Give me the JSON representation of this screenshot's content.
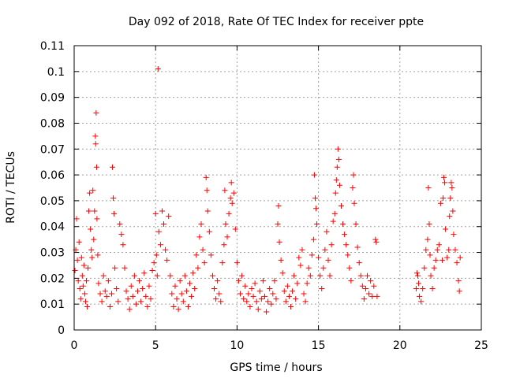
{
  "chart_data": {
    "type": "scatter",
    "title": "Day 092 of 2018, Rate Of TEC Index for receiver ppte",
    "xlabel": "GPS time / hours",
    "ylabel": "ROTI / TECUs",
    "xlim": [
      0,
      25
    ],
    "ylim": [
      0,
      0.11
    ],
    "x_ticks": [
      "0",
      "5",
      "10",
      "15",
      "20",
      "25"
    ],
    "y_ticks": [
      "0",
      "0.01",
      "0.02",
      "0.03",
      "0.04",
      "0.05",
      "0.06",
      "0.07",
      "0.08",
      "0.09",
      "0.1",
      "0.11"
    ],
    "grid": true,
    "marker": "plus",
    "color": "#ff0000",
    "series": [
      {
        "points": [
          [
            0.05,
            0.023
          ],
          [
            0.1,
            0.031
          ],
          [
            0.15,
            0.043
          ],
          [
            0.2,
            0.027
          ],
          [
            0.25,
            0.019
          ],
          [
            0.3,
            0.034
          ],
          [
            0.35,
            0.016
          ],
          [
            0.4,
            0.012
          ],
          [
            0.45,
            0.028
          ],
          [
            0.5,
            0.021
          ],
          [
            0.55,
            0.017
          ],
          [
            0.6,
            0.025
          ],
          [
            0.65,
            0.014
          ],
          [
            0.7,
            0.011
          ],
          [
            0.75,
            0.019
          ],
          [
            0.8,
            0.009
          ],
          [
            0.85,
            0.024
          ],
          [
            0.9,
            0.046
          ],
          [
            0.95,
            0.053
          ],
          [
            1.0,
            0.039
          ],
          [
            1.05,
            0.031
          ],
          [
            1.1,
            0.028
          ],
          [
            1.15,
            0.054
          ],
          [
            1.2,
            0.035
          ],
          [
            1.25,
            0.046
          ],
          [
            1.3,
            0.075
          ],
          [
            1.32,
            0.072
          ],
          [
            1.35,
            0.084
          ],
          [
            1.38,
            0.063
          ],
          [
            1.4,
            0.043
          ],
          [
            1.45,
            0.029
          ],
          [
            1.5,
            0.018
          ],
          [
            1.6,
            0.014
          ],
          [
            1.7,
            0.011
          ],
          [
            1.8,
            0.021
          ],
          [
            1.9,
            0.015
          ],
          [
            2.0,
            0.013
          ],
          [
            2.1,
            0.019
          ],
          [
            2.2,
            0.009
          ],
          [
            2.3,
            0.014
          ],
          [
            2.35,
            0.063
          ],
          [
            2.4,
            0.051
          ],
          [
            2.45,
            0.045
          ],
          [
            2.5,
            0.024
          ],
          [
            2.6,
            0.016
          ],
          [
            2.7,
            0.011
          ],
          [
            2.8,
            0.041
          ],
          [
            2.9,
            0.037
          ],
          [
            3.0,
            0.033
          ],
          [
            3.1,
            0.024
          ],
          [
            3.2,
            0.015
          ],
          [
            3.3,
            0.012
          ],
          [
            3.4,
            0.008
          ],
          [
            3.5,
            0.017
          ],
          [
            3.6,
            0.013
          ],
          [
            3.7,
            0.021
          ],
          [
            3.8,
            0.01
          ],
          [
            3.9,
            0.015
          ],
          [
            4.0,
            0.019
          ],
          [
            4.1,
            0.011
          ],
          [
            4.2,
            0.016
          ],
          [
            4.3,
            0.022
          ],
          [
            4.4,
            0.013
          ],
          [
            4.5,
            0.009
          ],
          [
            4.6,
            0.017
          ],
          [
            4.7,
            0.012
          ],
          [
            4.8,
            0.023
          ],
          [
            4.9,
            0.026
          ],
          [
            5.0,
            0.045
          ],
          [
            5.05,
            0.029
          ],
          [
            5.1,
            0.021
          ],
          [
            5.15,
            0.101
          ],
          [
            5.2,
            0.038
          ],
          [
            5.3,
            0.033
          ],
          [
            5.4,
            0.046
          ],
          [
            5.5,
            0.041
          ],
          [
            5.6,
            0.031
          ],
          [
            5.7,
            0.027
          ],
          [
            5.8,
            0.044
          ],
          [
            5.9,
            0.021
          ],
          [
            6.0,
            0.014
          ],
          [
            6.1,
            0.009
          ],
          [
            6.2,
            0.017
          ],
          [
            6.3,
            0.012
          ],
          [
            6.4,
            0.008
          ],
          [
            6.5,
            0.019
          ],
          [
            6.6,
            0.014
          ],
          [
            6.7,
            0.011
          ],
          [
            6.8,
            0.021
          ],
          [
            6.9,
            0.015
          ],
          [
            7.0,
            0.009
          ],
          [
            7.1,
            0.018
          ],
          [
            7.2,
            0.013
          ],
          [
            7.3,
            0.022
          ],
          [
            7.4,
            0.016
          ],
          [
            7.5,
            0.029
          ],
          [
            7.6,
            0.024
          ],
          [
            7.7,
            0.036
          ],
          [
            7.8,
            0.041
          ],
          [
            7.9,
            0.031
          ],
          [
            8.0,
            0.026
          ],
          [
            8.1,
            0.059
          ],
          [
            8.15,
            0.054
          ],
          [
            8.2,
            0.046
          ],
          [
            8.3,
            0.038
          ],
          [
            8.4,
            0.029
          ],
          [
            8.5,
            0.021
          ],
          [
            8.6,
            0.016
          ],
          [
            8.7,
            0.012
          ],
          [
            8.8,
            0.019
          ],
          [
            8.9,
            0.014
          ],
          [
            9.0,
            0.011
          ],
          [
            9.1,
            0.026
          ],
          [
            9.2,
            0.033
          ],
          [
            9.25,
            0.054
          ],
          [
            9.3,
            0.041
          ],
          [
            9.4,
            0.036
          ],
          [
            9.5,
            0.045
          ],
          [
            9.6,
            0.051
          ],
          [
            9.65,
            0.057
          ],
          [
            9.7,
            0.049
          ],
          [
            9.8,
            0.053
          ],
          [
            9.9,
            0.039
          ],
          [
            10.0,
            0.026
          ],
          [
            10.1,
            0.019
          ],
          [
            10.2,
            0.014
          ],
          [
            10.3,
            0.021
          ],
          [
            10.4,
            0.012
          ],
          [
            10.5,
            0.017
          ],
          [
            10.6,
            0.011
          ],
          [
            10.7,
            0.014
          ],
          [
            10.8,
            0.009
          ],
          [
            10.9,
            0.016
          ],
          [
            11.0,
            0.013
          ],
          [
            11.1,
            0.018
          ],
          [
            11.2,
            0.011
          ],
          [
            11.3,
            0.008
          ],
          [
            11.4,
            0.015
          ],
          [
            11.5,
            0.012
          ],
          [
            11.6,
            0.019
          ],
          [
            11.7,
            0.013
          ],
          [
            11.8,
            0.007
          ],
          [
            11.9,
            0.011
          ],
          [
            12.0,
            0.016
          ],
          [
            12.1,
            0.01
          ],
          [
            12.2,
            0.014
          ],
          [
            12.3,
            0.019
          ],
          [
            12.4,
            0.012
          ],
          [
            12.5,
            0.041
          ],
          [
            12.55,
            0.048
          ],
          [
            12.6,
            0.034
          ],
          [
            12.7,
            0.027
          ],
          [
            12.8,
            0.022
          ],
          [
            12.9,
            0.015
          ],
          [
            13.0,
            0.011
          ],
          [
            13.1,
            0.017
          ],
          [
            13.2,
            0.013
          ],
          [
            13.3,
            0.009
          ],
          [
            13.4,
            0.015
          ],
          [
            13.5,
            0.021
          ],
          [
            13.6,
            0.012
          ],
          [
            13.7,
            0.018
          ],
          [
            13.8,
            0.028
          ],
          [
            13.9,
            0.025
          ],
          [
            14.0,
            0.031
          ],
          [
            14.1,
            0.014
          ],
          [
            14.2,
            0.011
          ],
          [
            14.3,
            0.018
          ],
          [
            14.4,
            0.024
          ],
          [
            14.5,
            0.021
          ],
          [
            14.6,
            0.029
          ],
          [
            14.7,
            0.035
          ],
          [
            14.75,
            0.06
          ],
          [
            14.8,
            0.051
          ],
          [
            14.85,
            0.047
          ],
          [
            14.9,
            0.041
          ],
          [
            15.0,
            0.028
          ],
          [
            15.1,
            0.021
          ],
          [
            15.2,
            0.016
          ],
          [
            15.3,
            0.024
          ],
          [
            15.4,
            0.031
          ],
          [
            15.5,
            0.038
          ],
          [
            15.6,
            0.027
          ],
          [
            15.7,
            0.021
          ],
          [
            15.8,
            0.033
          ],
          [
            15.9,
            0.042
          ],
          [
            16.0,
            0.045
          ],
          [
            16.05,
            0.053
          ],
          [
            16.1,
            0.058
          ],
          [
            16.15,
            0.063
          ],
          [
            16.2,
            0.07
          ],
          [
            16.25,
            0.066
          ],
          [
            16.3,
            0.056
          ],
          [
            16.4,
            0.048
          ],
          [
            16.5,
            0.041
          ],
          [
            16.6,
            0.037
          ],
          [
            16.7,
            0.033
          ],
          [
            16.8,
            0.029
          ],
          [
            16.9,
            0.024
          ],
          [
            17.0,
            0.019
          ],
          [
            17.1,
            0.055
          ],
          [
            17.15,
            0.06
          ],
          [
            17.2,
            0.049
          ],
          [
            17.3,
            0.041
          ],
          [
            17.4,
            0.032
          ],
          [
            17.5,
            0.026
          ],
          [
            17.6,
            0.021
          ],
          [
            17.7,
            0.017
          ],
          [
            17.8,
            0.012
          ],
          [
            17.9,
            0.016
          ],
          [
            18.0,
            0.021
          ],
          [
            18.1,
            0.014
          ],
          [
            18.2,
            0.019
          ],
          [
            18.3,
            0.013
          ],
          [
            18.4,
            0.017
          ],
          [
            18.5,
            0.035
          ],
          [
            18.55,
            0.034
          ],
          [
            18.6,
            0.013
          ],
          [
            21.0,
            0.016
          ],
          [
            21.05,
            0.022
          ],
          [
            21.1,
            0.021
          ],
          [
            21.15,
            0.018
          ],
          [
            21.2,
            0.013
          ],
          [
            21.3,
            0.011
          ],
          [
            21.4,
            0.016
          ],
          [
            21.5,
            0.024
          ],
          [
            21.6,
            0.031
          ],
          [
            21.7,
            0.035
          ],
          [
            21.75,
            0.055
          ],
          [
            21.8,
            0.041
          ],
          [
            21.85,
            0.029
          ],
          [
            21.9,
            0.021
          ],
          [
            22.0,
            0.016
          ],
          [
            22.1,
            0.024
          ],
          [
            22.2,
            0.027
          ],
          [
            22.3,
            0.031
          ],
          [
            22.4,
            0.033
          ],
          [
            22.5,
            0.049
          ],
          [
            22.6,
            0.027
          ],
          [
            22.65,
            0.051
          ],
          [
            22.7,
            0.059
          ],
          [
            22.75,
            0.057
          ],
          [
            22.8,
            0.039
          ],
          [
            22.9,
            0.028
          ],
          [
            23.0,
            0.031
          ],
          [
            23.05,
            0.044
          ],
          [
            23.1,
            0.051
          ],
          [
            23.15,
            0.057
          ],
          [
            23.2,
            0.055
          ],
          [
            23.25,
            0.046
          ],
          [
            23.3,
            0.037
          ],
          [
            23.4,
            0.031
          ],
          [
            23.5,
            0.026
          ],
          [
            23.6,
            0.019
          ],
          [
            23.65,
            0.015
          ],
          [
            23.7,
            0.028
          ]
        ]
      }
    ]
  }
}
